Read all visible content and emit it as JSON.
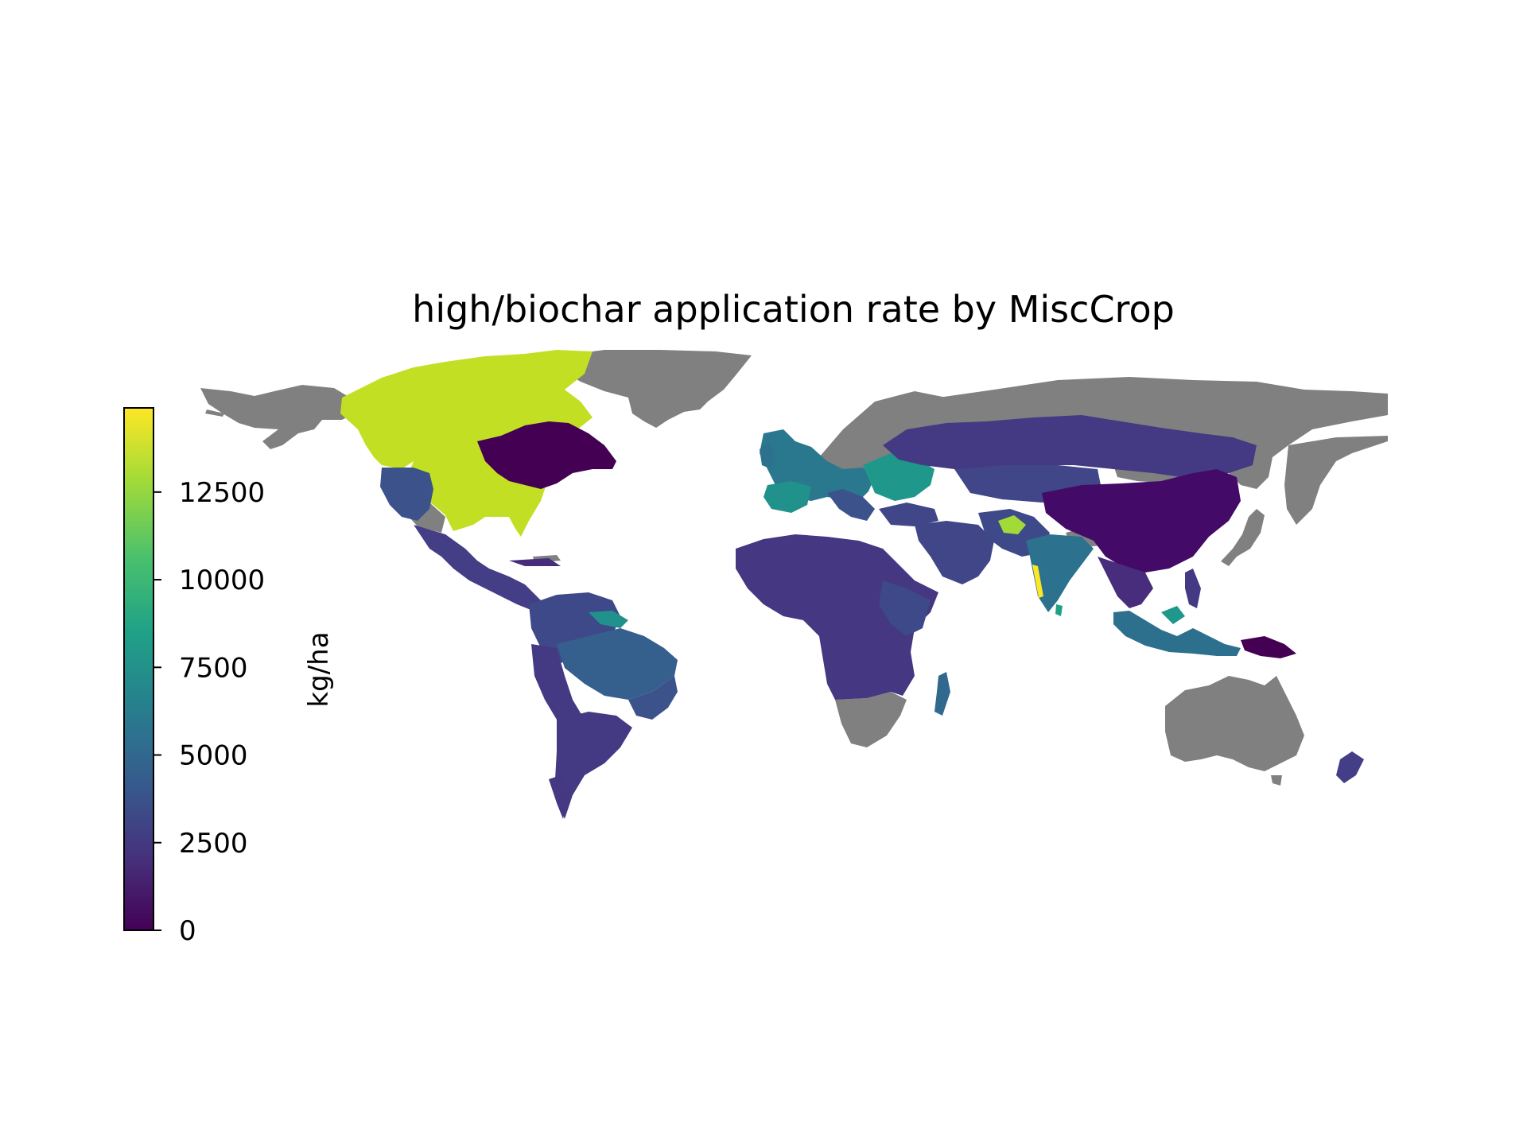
{
  "title": "high/biochar application rate by MiscCrop",
  "colorbar": {
    "label": "kg/ha",
    "ticks": [
      "0",
      "2500",
      "5000",
      "7500",
      "10000",
      "12500"
    ],
    "tick_values": [
      0,
      2500,
      5000,
      7500,
      10000,
      12500
    ],
    "min": 0,
    "max": 14900,
    "colormap": "viridis",
    "colors": [
      "#440154",
      "#46327e",
      "#365c8d",
      "#277f8e",
      "#1fa187",
      "#4ac16d",
      "#a0da39",
      "#fde725"
    ]
  },
  "map": {
    "projection": "equirectangular",
    "no_data_color": "#808080",
    "regions": [
      {
        "name": "Canada / United States (east)",
        "value": 13500,
        "color": "#c2df23"
      },
      {
        "name": "Quebec / Labrador",
        "value": 900,
        "color": "#440154"
      },
      {
        "name": "United States (west)",
        "value": 4500,
        "color": "#3b528b"
      },
      {
        "name": "Mexico / Central America",
        "value": 2500,
        "color": "#433e85"
      },
      {
        "name": "Colombia / Venezuela / Guianas",
        "value": 3000,
        "color": "#3e4989"
      },
      {
        "name": "Brazil (central)",
        "value": 5000,
        "color": "#355f8d"
      },
      {
        "name": "Southern South America",
        "value": 2000,
        "color": "#443983"
      },
      {
        "name": "Africa",
        "value": 2200,
        "color": "#453781"
      },
      {
        "name": "Madagascar",
        "value": 5500,
        "color": "#31688e"
      },
      {
        "name": "Western Europe",
        "value": 6500,
        "color": "#2a788e"
      },
      {
        "name": "Iberia",
        "value": 9000,
        "color": "#21918c"
      },
      {
        "name": "Eastern Europe",
        "value": 9500,
        "color": "#1f988b"
      },
      {
        "name": "Russia / Central Asia",
        "value": 2000,
        "color": "#443a83"
      },
      {
        "name": "Kazakhstan / Middle East",
        "value": 3000,
        "color": "#404688"
      },
      {
        "name": "Afghanistan",
        "value": 12500,
        "color": "#a2da37"
      },
      {
        "name": "India",
        "value": 6500,
        "color": "#2c728e"
      },
      {
        "name": "China",
        "value": 500,
        "color": "#440a68"
      },
      {
        "name": "Southeast Asia",
        "value": 1500,
        "color": "#472d7b"
      },
      {
        "name": "Indonesia / Malaysia",
        "value": 6000,
        "color": "#2d708e"
      },
      {
        "name": "New Zealand",
        "value": 2500,
        "color": "#433e85"
      }
    ]
  }
}
